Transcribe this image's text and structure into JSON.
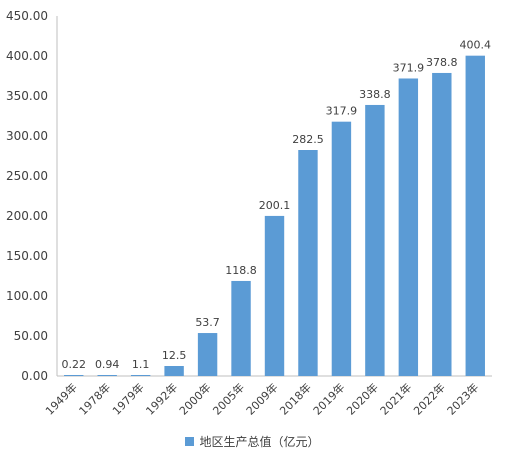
{
  "chart_data": {
    "type": "bar",
    "categories": [
      "1949年",
      "1978年",
      "1979年",
      "1992年",
      "2000年",
      "2005年",
      "2009年",
      "2018年",
      "2019年",
      "2020年",
      "2021年",
      "2022年",
      "2023年"
    ],
    "series": [
      {
        "name": "地区生产总值（亿元）",
        "values": [
          0.22,
          0.94,
          1.1,
          12.5,
          53.7,
          118.8,
          200.1,
          282.5,
          317.9,
          338.8,
          371.9,
          378.8,
          400.4
        ],
        "data_labels": [
          "0.22",
          "0.94",
          "1.1",
          "12.5",
          "53.7",
          "118.8",
          "200.1",
          "282.5",
          "317.9",
          "338.8",
          "371.9",
          "378.8",
          "400.4"
        ]
      }
    ],
    "y_ticks": [
      "0.00",
      "50.00",
      "100.00",
      "150.00",
      "200.00",
      "250.00",
      "300.00",
      "350.00",
      "400.00",
      "450.00"
    ],
    "ylim": [
      0,
      450
    ],
    "bar_color": "#5b9bd5",
    "axis_color": "#bfbfbf",
    "grid": false,
    "legend_position": "bottom"
  }
}
